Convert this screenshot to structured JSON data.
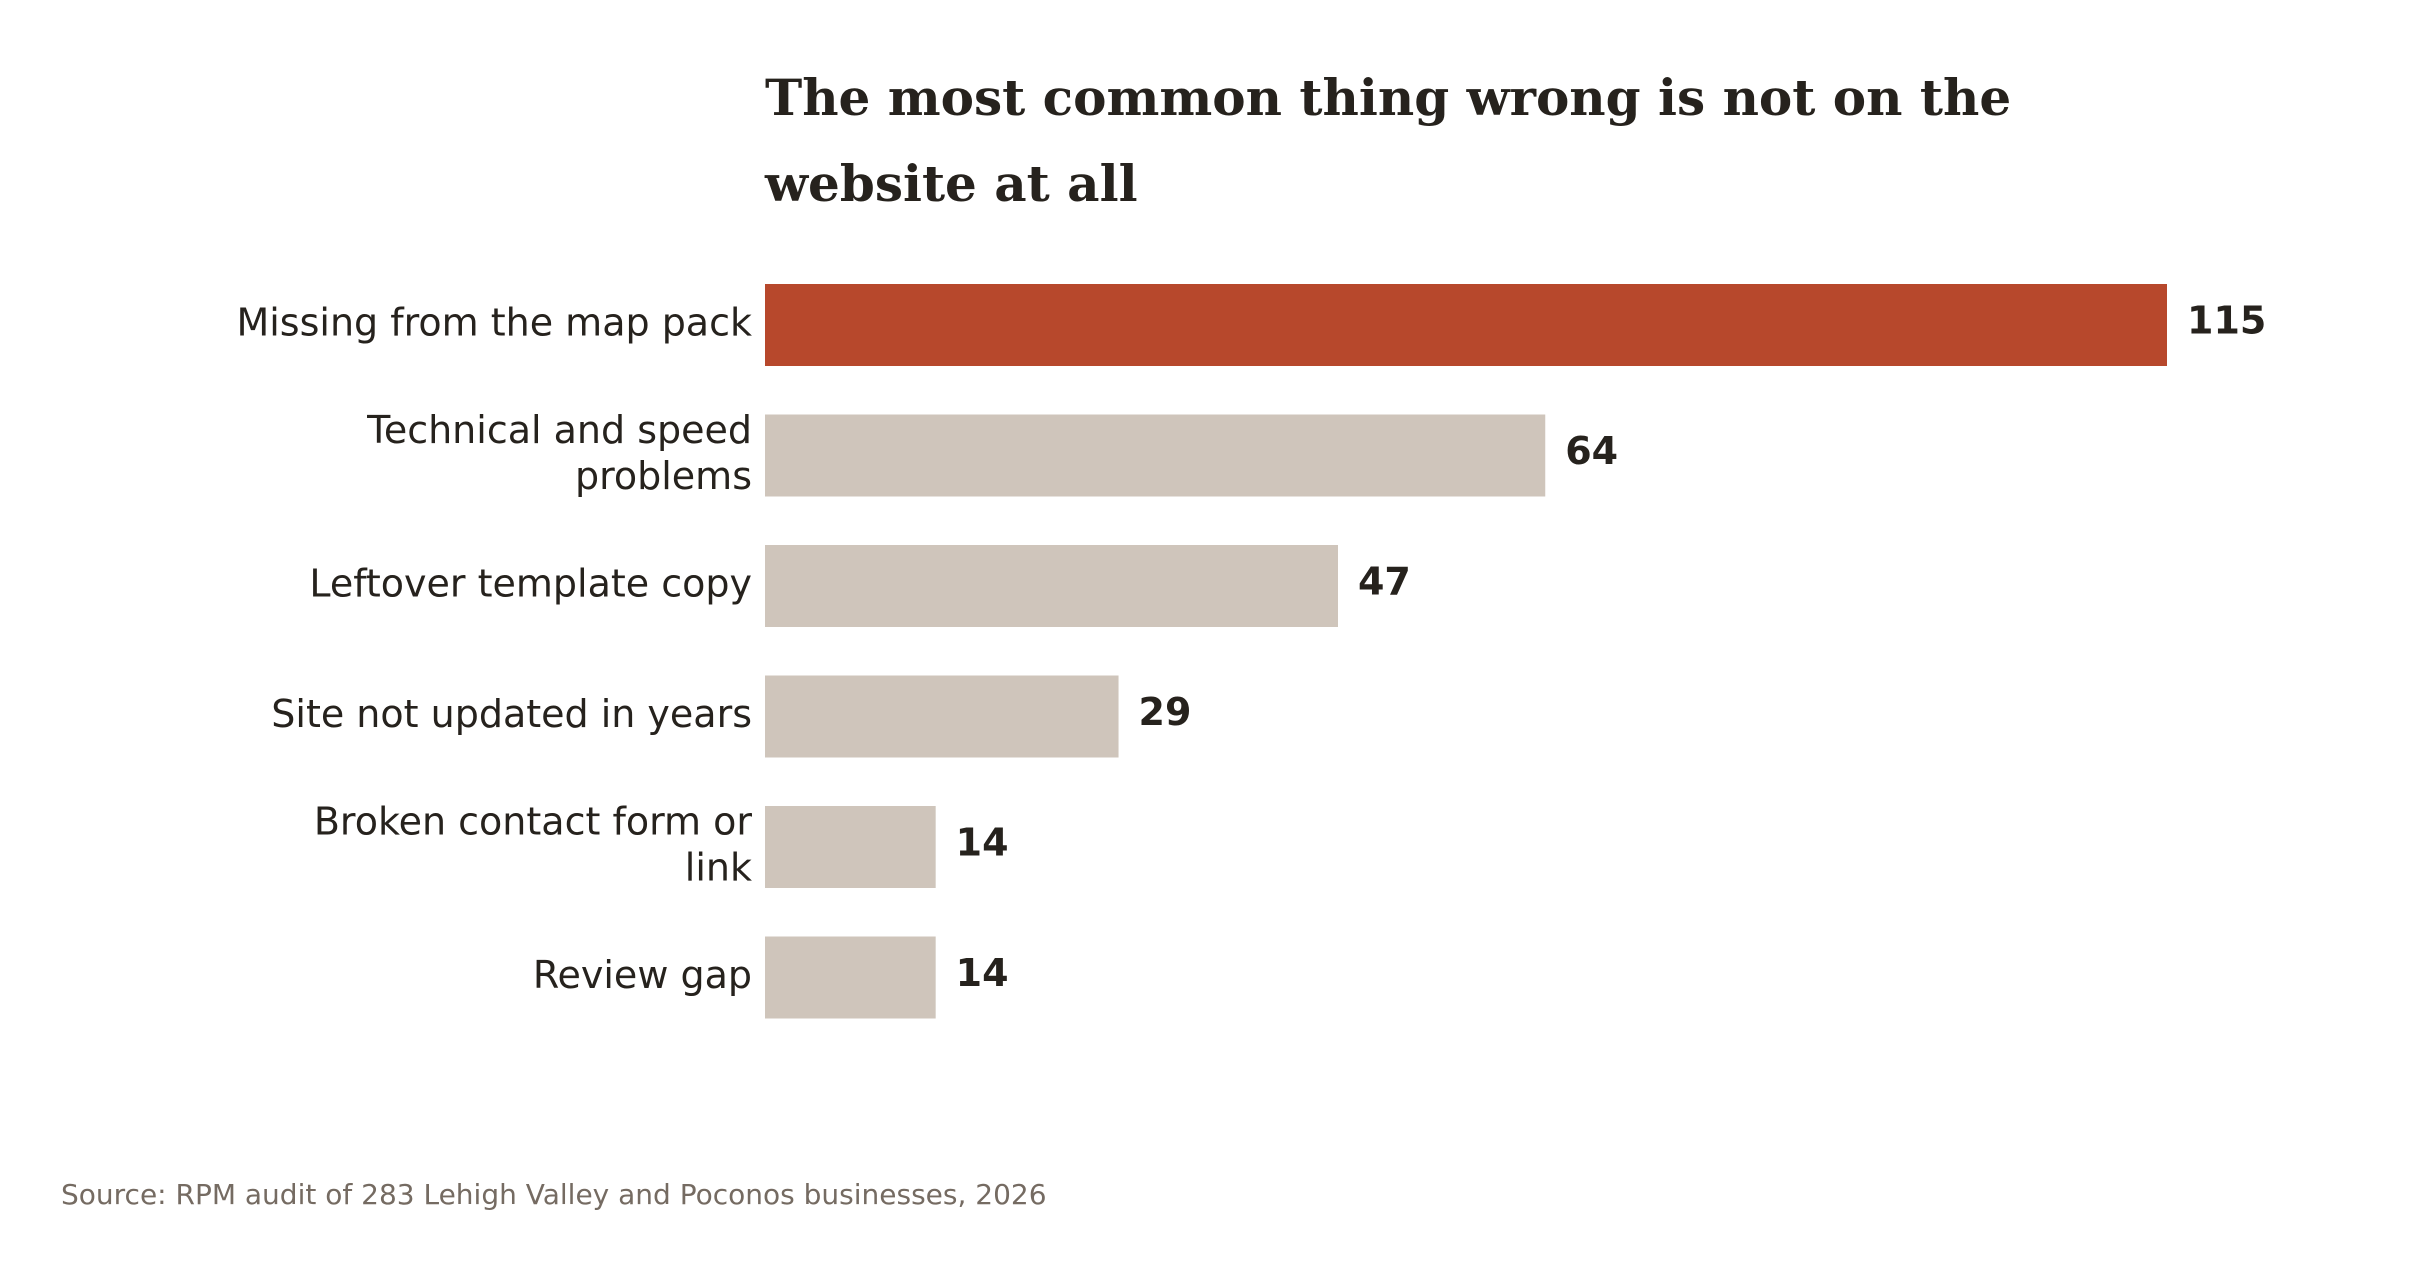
{
  "chart_data": {
    "type": "bar",
    "orientation": "horizontal",
    "title": "The most common thing wrong is not on the website at all",
    "title_lines": [
      "The most common thing wrong is not on the",
      "website at all"
    ],
    "categories": [
      "Missing from the map pack",
      "Technical and speed problems",
      "Leftover template copy",
      "Site not updated in years",
      "Broken contact form or link",
      "Review gap"
    ],
    "category_lines": [
      [
        "Missing from the map pack"
      ],
      [
        "Technical and speed",
        "problems"
      ],
      [
        "Leftover template copy"
      ],
      [
        "Site not updated in years"
      ],
      [
        "Broken contact form or",
        "link"
      ],
      [
        "Review gap"
      ]
    ],
    "values": [
      115,
      64,
      47,
      29,
      14,
      14
    ],
    "xlim": [
      0,
      115
    ],
    "grid": false,
    "legend": "none",
    "source": "Source: RPM audit of 283 Lehigh Valley and Poconos businesses, 2026",
    "colors": {
      "highlight": "#b7482c",
      "muted": "#cfc5bb",
      "text": "#26221d",
      "source": "#756b62"
    },
    "highlight_index": 0
  }
}
